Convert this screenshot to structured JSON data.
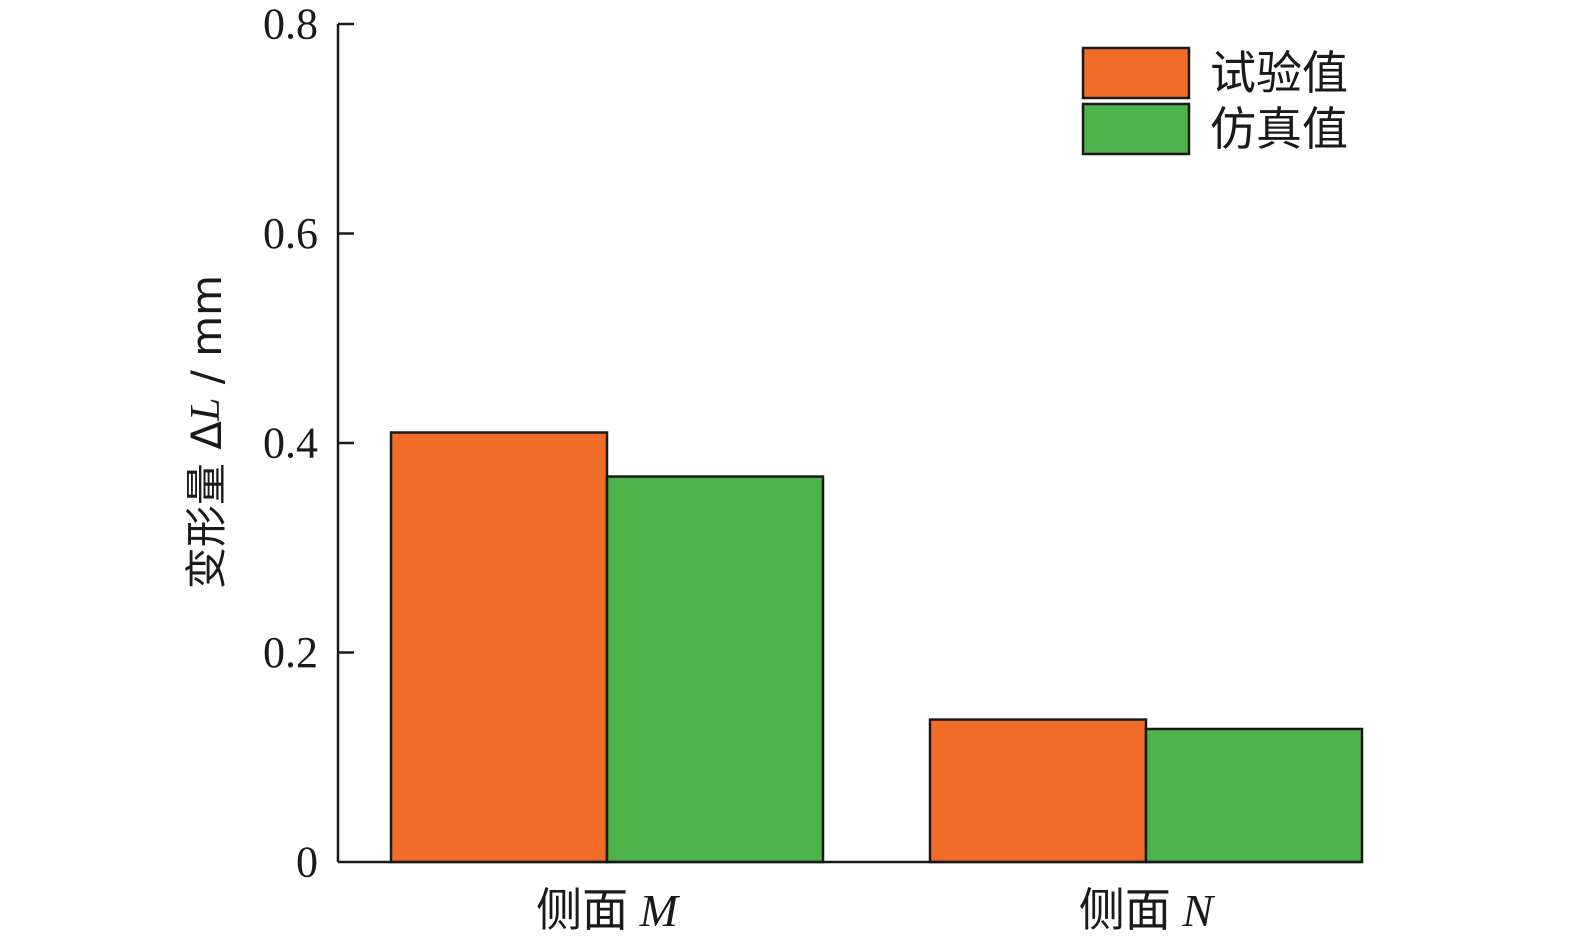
{
  "chart_data": {
    "type": "bar",
    "categories": [
      "侧面 M",
      "侧面 N"
    ],
    "category_parts": [
      {
        "prefix": "侧面 ",
        "symbol": "M"
      },
      {
        "prefix": "侧面 ",
        "symbol": "N"
      }
    ],
    "series": [
      {
        "name": "试验值",
        "values": [
          0.41,
          0.136
        ],
        "color": "#f26c29"
      },
      {
        "name": "仿真值",
        "values": [
          0.368,
          0.127
        ],
        "color": "#4fb34b"
      }
    ],
    "ylabel": "变形量 ΔL / mm",
    "ylabel_parts": {
      "prefix": "变形量 Δ",
      "symbol": "L",
      "suffix": " / mm"
    },
    "ylim": [
      0,
      0.8
    ],
    "yticks": [
      0,
      0.2,
      0.4,
      0.6,
      0.8
    ],
    "ytick_labels": [
      "0",
      "0.2",
      "0.4",
      "0.6",
      "0.8"
    ],
    "legend_position": "top-right",
    "grid": false
  }
}
